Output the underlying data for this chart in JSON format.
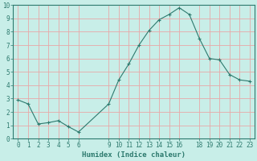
{
  "x": [
    0,
    1,
    2,
    3,
    4,
    5,
    6,
    9,
    10,
    11,
    12,
    13,
    14,
    15,
    16,
    17,
    18,
    19,
    20,
    21,
    22,
    23
  ],
  "y": [
    2.9,
    2.6,
    1.1,
    1.2,
    1.35,
    0.9,
    0.5,
    2.6,
    4.4,
    5.6,
    7.0,
    8.1,
    8.9,
    9.3,
    9.8,
    9.3,
    7.5,
    6.0,
    5.9,
    4.8,
    4.4,
    4.3
  ],
  "line_color": "#2d7a6e",
  "marker": "+",
  "marker_size": 3,
  "marker_lw": 0.8,
  "line_width": 0.8,
  "background_color": "#c8eee8",
  "grid_color": "#e8a8a8",
  "xlabel": "Humidex (Indice chaleur)",
  "xlim": [
    -0.5,
    23.5
  ],
  "ylim": [
    0,
    10
  ],
  "xticks": [
    0,
    1,
    2,
    3,
    4,
    5,
    6,
    9,
    10,
    11,
    12,
    13,
    14,
    15,
    16,
    18,
    19,
    20,
    21,
    22,
    23
  ],
  "yticks": [
    0,
    1,
    2,
    3,
    4,
    5,
    6,
    7,
    8,
    9,
    10
  ],
  "label_fontsize": 6.5,
  "tick_fontsize": 5.5
}
